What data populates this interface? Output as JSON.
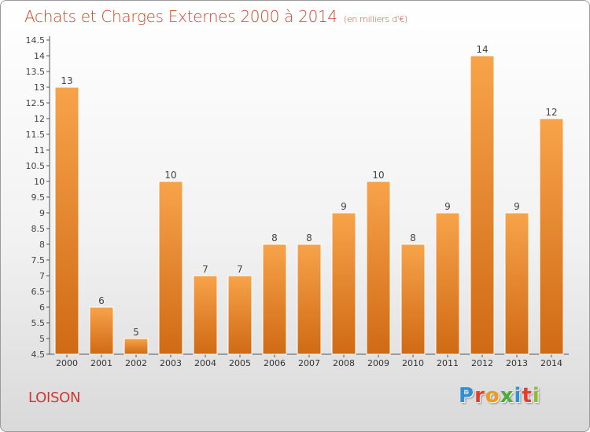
{
  "header": {
    "title": "Achats et Charges Externes 2000 à 2014",
    "subtitle": "(en milliers d'€)"
  },
  "footer": {
    "commune": "LOISON",
    "brand_letters": [
      "P",
      "r",
      "o",
      "x",
      "i",
      "t",
      "i"
    ]
  },
  "colors": {
    "bar_light": "#f7a34a",
    "bar_dark": "#d06a14",
    "title": "#cc4a2a",
    "brand": [
      "#2e8fd6",
      "#e63c2b",
      "#f29a17",
      "#4aae3a",
      "#2e8fd6",
      "#e63c2b",
      "#8bbf2a"
    ]
  },
  "chart_data": {
    "type": "bar",
    "categories": [
      "2000",
      "2001",
      "2002",
      "2003",
      "2004",
      "2005",
      "2006",
      "2007",
      "2008",
      "2009",
      "2010",
      "2011",
      "2012",
      "2013",
      "2014"
    ],
    "values": [
      13,
      6,
      5,
      10,
      7,
      7,
      8,
      8,
      9,
      10,
      8,
      9,
      14,
      9,
      12
    ],
    "value_labels": [
      "13",
      "6",
      "5",
      "10",
      "7",
      "7",
      "8",
      "8",
      "9",
      "10",
      "8",
      "9",
      "14",
      "9",
      "12"
    ],
    "title": "Achats et Charges Externes 2000 à 2014",
    "xlabel": "",
    "ylabel": "",
    "ylim": [
      4.5,
      14.5
    ],
    "yticks": [
      "4.5",
      "5",
      "5.5",
      "6",
      "6.5",
      "7",
      "7.5",
      "8",
      "8.5",
      "9",
      "9.5",
      "10",
      "10.5",
      "11",
      "11.5",
      "12",
      "12.5",
      "13",
      "13.5",
      "14",
      "14.5"
    ],
    "grid": false,
    "legend": "none"
  }
}
